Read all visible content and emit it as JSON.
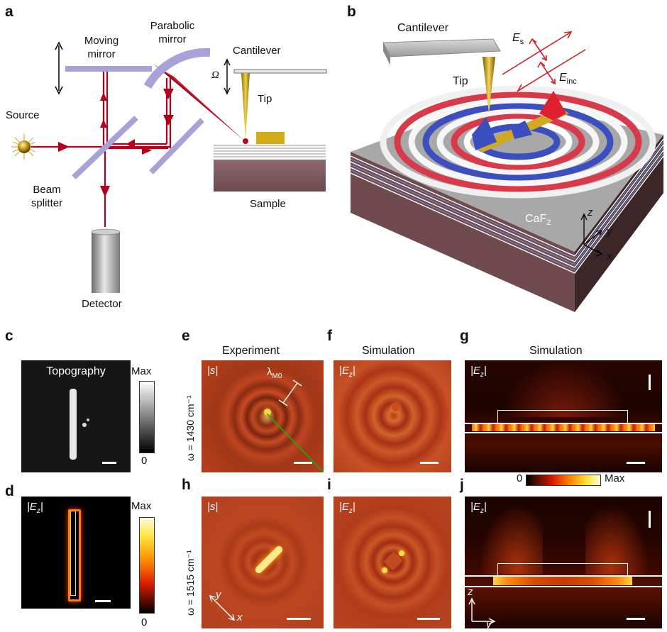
{
  "panels": {
    "a": "a",
    "b": "b",
    "c": "c",
    "d": "d",
    "e": "e",
    "f": "f",
    "g": "g",
    "h": "h",
    "i": "i",
    "j": "j"
  },
  "panel_a": {
    "moving_mirror": [
      "Moving",
      "mirror"
    ],
    "parabolic_mirror": [
      "Parabolic",
      "mirror"
    ],
    "cantilever": "Cantilever",
    "omega": "Ω",
    "tip": "Tip",
    "source": "Source",
    "beam_splitter": [
      "Beam",
      "splitter"
    ],
    "sample": "Sample",
    "detector": "Detector"
  },
  "panel_b": {
    "cantilever": "Cantilever",
    "tip": "Tip",
    "E_s": "E",
    "E_s_sub": "s",
    "E_inc": "E",
    "E_inc_sub": "inc",
    "substrate": "CaF",
    "substrate_sub": "2",
    "axis_z": "z",
    "axis_y": "y",
    "axis_x": "x"
  },
  "panel_c": {
    "title": "Topography",
    "cbar_max": "Max",
    "cbar_min": "0"
  },
  "panel_d": {
    "label": "|E",
    "label_sub": "z",
    "label_end": "|",
    "cbar_max": "Max",
    "cbar_min": "0"
  },
  "headers": {
    "experiment": "Experiment",
    "simulation_f": "Simulation",
    "simulation_g": "Simulation"
  },
  "row_labels": {
    "top": "ω = 1430 cm⁻¹",
    "bottom": "ω = 1515 cm⁻¹"
  },
  "panel_e": {
    "label": "|s|",
    "lambda": "λ",
    "lambda_sub": "M0"
  },
  "panel_f": {
    "label": "|E",
    "label_sub": "z",
    "label_end": "|"
  },
  "panel_g": {
    "label": "|E",
    "label_sub": "z",
    "label_end": "|"
  },
  "panel_h": {
    "label": "|s|",
    "axis_y": "y",
    "axis_x": "x"
  },
  "panel_i": {
    "label": "|E",
    "label_sub": "z",
    "label_end": "|"
  },
  "panel_j": {
    "label": "|E",
    "label_sub": "z",
    "label_end": "|",
    "axis_z": "z",
    "axis_y": "y"
  },
  "colorbar_gj": {
    "min": "0",
    "max": "Max"
  },
  "colors": {
    "beam": "#b5001a",
    "mirror": "#a7a3d6",
    "tip": "#c9a81a",
    "sample_dark": "#7b5358",
    "map_bg": "#b32a18",
    "hot": "#ffd84a"
  }
}
